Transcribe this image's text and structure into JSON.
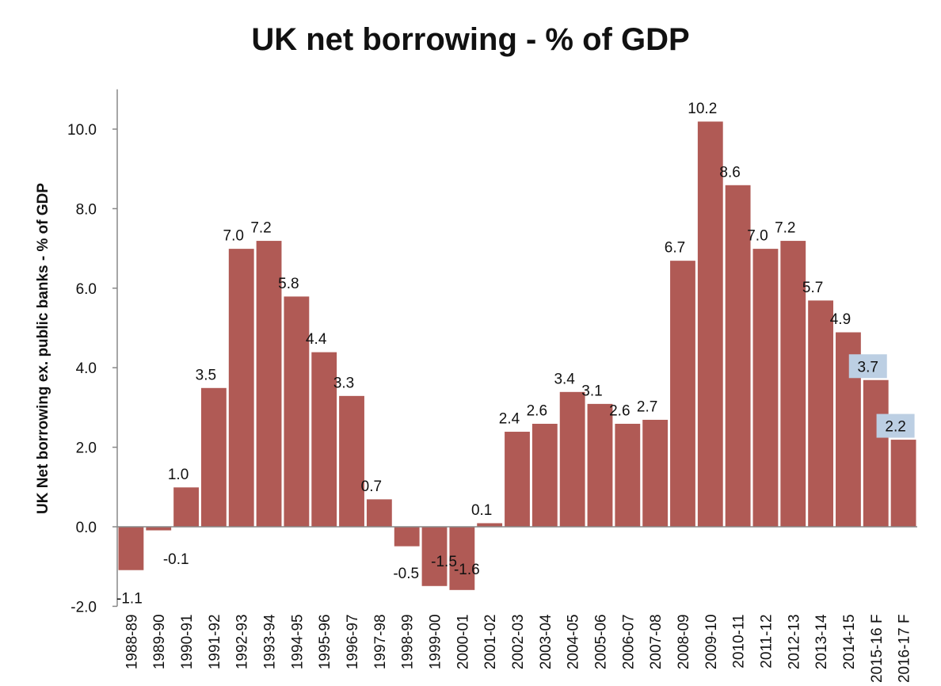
{
  "chart_data": {
    "type": "bar",
    "title": "UK net borrowing - % of GDP",
    "xlabel": "",
    "ylabel": "UK Net borrowing ex. public banks - % of GDP",
    "ylim": [
      -2.0,
      11.0
    ],
    "yticks": [
      "-2.0",
      "0.0",
      "2.0",
      "4.0",
      "6.0",
      "8.0",
      "10.0"
    ],
    "grid": false,
    "bar_color": "#b05a55",
    "highlight_color": "#bccfe3",
    "categories": [
      "1988-89",
      "1989-90",
      "1990-91",
      "1991-92",
      "1992-93",
      "1993-94",
      "1994-95",
      "1995-96",
      "1996-97",
      "1997-98",
      "1998-99",
      "1999-00",
      "2000-01",
      "2001-02",
      "2002-03",
      "2003-04",
      "2004-05",
      "2005-06",
      "2006-07",
      "2007-08",
      "2008-09",
      "2009-10",
      "2010-11",
      "2011-12",
      "2012-13",
      "2013-14",
      "2014-15",
      "2015-16 F",
      "2016-17 F"
    ],
    "values": [
      -1.1,
      -0.1,
      1.0,
      3.5,
      7.0,
      7.2,
      5.8,
      4.4,
      3.3,
      0.7,
      -0.5,
      -1.5,
      -1.6,
      0.1,
      2.4,
      2.6,
      3.4,
      3.1,
      2.6,
      2.7,
      6.7,
      10.2,
      8.6,
      7.0,
      7.2,
      5.7,
      4.9,
      3.7,
      2.2
    ],
    "data_labels": [
      "-1.1",
      "-0.1",
      "1.0",
      "3.5",
      "7.0",
      "7.2",
      "5.8",
      "4.4",
      "3.3",
      "0.7",
      "-0.5",
      "-1.5",
      "-1.6",
      "0.1",
      "2.4",
      "2.6",
      "3.4",
      "3.1",
      "2.6",
      "2.7",
      "6.7",
      "10.2",
      "8.6",
      "7.0",
      "7.2",
      "5.7",
      "4.9",
      "3.7",
      "2.2"
    ],
    "highlighted_labels": [
      27,
      28
    ]
  }
}
